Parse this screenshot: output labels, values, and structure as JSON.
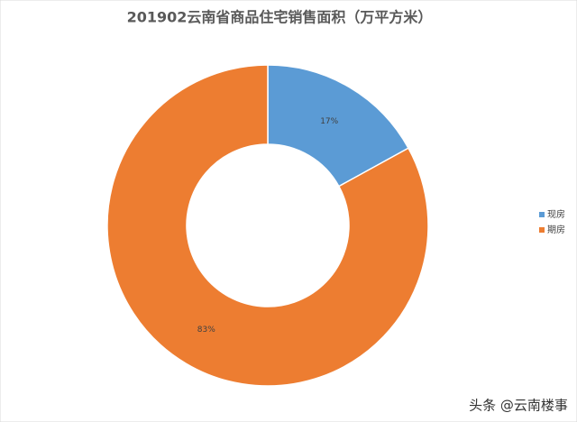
{
  "chart_data": {
    "type": "donut",
    "title": "201902云南省商品住宅销售面积（万平方米）",
    "categories": [
      "现房",
      "期房"
    ],
    "values": [
      17,
      83
    ],
    "value_labels": [
      "17%",
      "83%"
    ],
    "colors": [
      "#5b9bd5",
      "#ed7d31"
    ],
    "legend": "right"
  },
  "watermark": "头条 @云南楼事"
}
